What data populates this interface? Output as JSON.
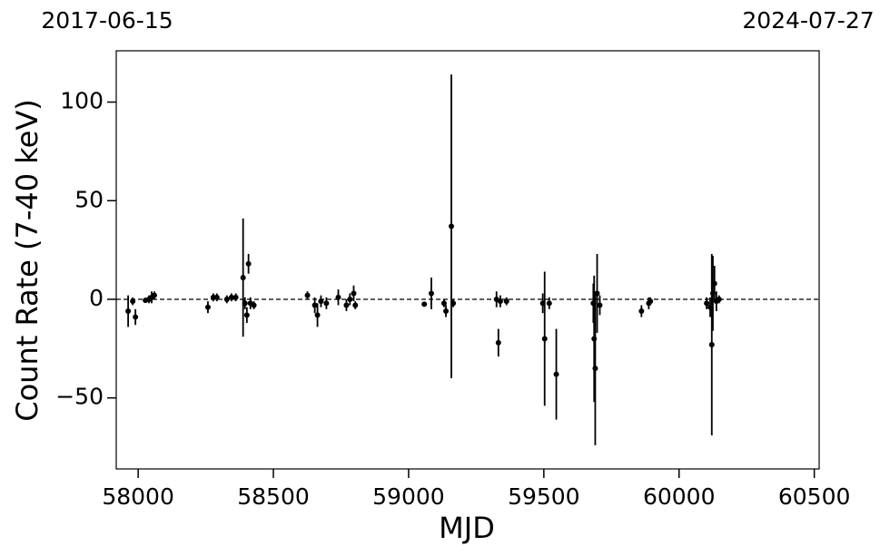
{
  "chart_data": {
    "type": "scatter",
    "top_left_label": "2017-06-15",
    "top_right_label": "2024-07-27",
    "xlabel": "MJD",
    "ylabel": "Count Rate (7-40 keV)",
    "xlim": [
      57919,
      60518
    ],
    "ylim": [
      -86,
      126
    ],
    "xticks": [
      58000,
      58500,
      59000,
      59500,
      60000,
      60500
    ],
    "yticks": [
      {
        "value": -50,
        "label": "−50"
      },
      0,
      50,
      100
    ],
    "reference_line": 0,
    "series": [
      {
        "color": "#000000",
        "x": [
          57963,
          57980,
          57990,
          58027,
          58040,
          58050,
          58060,
          58258,
          58278,
          58291,
          58328,
          58345,
          58361,
          58388,
          58395,
          58402,
          58408,
          58415,
          58428,
          58626,
          58653,
          58663,
          58676,
          58696,
          58740,
          58770,
          58783,
          58797,
          58803,
          59058,
          59084,
          59131,
          59138,
          59158,
          59165,
          59325,
          59332,
          59339,
          59362,
          59496,
          59503,
          59520,
          59546,
          59683,
          59686,
          59690,
          59697,
          59707,
          59861,
          59888,
          59894,
          60102,
          60115,
          60121,
          60125,
          60131,
          60138,
          60148
        ],
        "values": [
          -6,
          -1,
          -9,
          -0.5,
          0,
          1,
          2,
          -4,
          1,
          1,
          0,
          1,
          1,
          11,
          -2,
          -8,
          18,
          -2,
          -3,
          2,
          -3,
          -8,
          -1,
          -2,
          1,
          -3,
          0,
          3,
          -3,
          -2.5,
          3,
          -2,
          -6,
          37,
          -2,
          0,
          -22,
          -1,
          -1,
          -2,
          -20,
          -2,
          -38,
          -2,
          -20,
          -35,
          3,
          -3,
          -6,
          -2,
          -1,
          -2,
          -4,
          -23,
          3,
          8,
          -1,
          0
        ],
        "errors": [
          8,
          2,
          4,
          1,
          2,
          3,
          2,
          3,
          2,
          2,
          2,
          2,
          2,
          30,
          3,
          4,
          5,
          3,
          2,
          2,
          4,
          6,
          3,
          3,
          4,
          3,
          3,
          4,
          2,
          1,
          8,
          2,
          3,
          77,
          2,
          4,
          7,
          3,
          2,
          5,
          34,
          3,
          23,
          10,
          32,
          39,
          20,
          5,
          3,
          3,
          2,
          3,
          5,
          46,
          19,
          9,
          5,
          2
        ]
      }
    ]
  }
}
